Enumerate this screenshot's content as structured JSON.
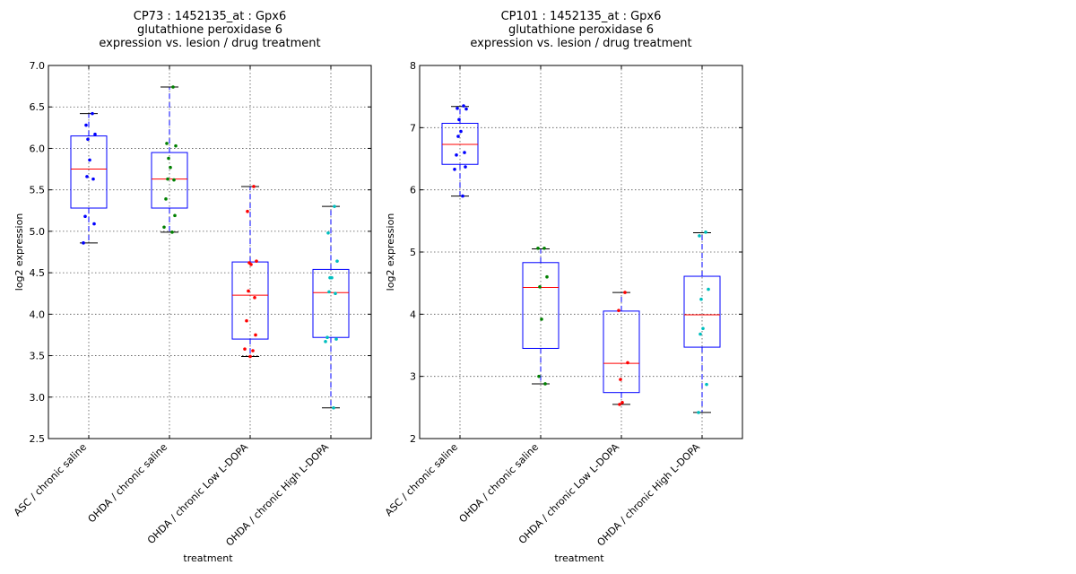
{
  "chart_data": [
    {
      "type": "box",
      "title": [
        "CP73 : 1452135_at : Gpx6",
        "glutathione peroxidase 6",
        "expression vs. lesion / drug treatment"
      ],
      "xlabel": "treatment",
      "ylabel": "log2 expression",
      "ylim": [
        2.5,
        7.0
      ],
      "yticks": [
        2.5,
        3.0,
        3.5,
        4.0,
        4.5,
        5.0,
        5.5,
        6.0,
        6.5,
        7.0
      ],
      "ytick_labels": [
        "2.5",
        "3.0",
        "3.5",
        "4.0",
        "4.5",
        "5.0",
        "5.5",
        "6.0",
        "6.5",
        "7.0"
      ],
      "grid": true,
      "categories": [
        "ASC / chronic saline",
        "OHDA / chronic saline",
        "OHDA / chronic Low L-DOPA",
        "OHDA / chronic High L-DOPA"
      ],
      "series": [
        {
          "color": "#0000ff",
          "q1": 5.28,
          "median": 5.75,
          "q3": 6.15,
          "whisker_low": 4.86,
          "whisker_high": 6.42,
          "points": [
            6.42,
            6.28,
            6.17,
            6.11,
            5.86,
            5.66,
            5.63,
            5.18,
            5.09,
            4.86
          ]
        },
        {
          "color": "#008000",
          "q1": 5.28,
          "median": 5.63,
          "q3": 5.95,
          "whisker_low": 4.99,
          "whisker_high": 6.74,
          "points": [
            6.74,
            6.06,
            6.03,
            5.88,
            5.77,
            5.63,
            5.62,
            5.39,
            5.19,
            5.05,
            4.99
          ]
        },
        {
          "color": "#ff0000",
          "q1": 3.7,
          "median": 4.23,
          "q3": 4.63,
          "whisker_low": 3.49,
          "whisker_high": 5.54,
          "points": [
            5.54,
            5.24,
            4.64,
            4.62,
            4.6,
            4.28,
            4.2,
            3.92,
            3.75,
            3.58,
            3.56,
            3.49
          ]
        },
        {
          "color": "#00bfbf",
          "q1": 3.72,
          "median": 4.26,
          "q3": 4.54,
          "whisker_low": 2.87,
          "whisker_high": 5.3,
          "points": [
            5.3,
            4.98,
            4.64,
            4.44,
            4.44,
            4.27,
            4.25,
            3.72,
            3.7,
            3.67,
            2.87
          ]
        }
      ]
    },
    {
      "type": "box",
      "title": [
        "CP101 : 1452135_at : Gpx6",
        "glutathione peroxidase 6",
        "expression vs. lesion / drug treatment"
      ],
      "xlabel": "treatment",
      "ylabel": "log2 expression",
      "ylim": [
        2,
        8
      ],
      "yticks": [
        2,
        3,
        4,
        5,
        6,
        7,
        8
      ],
      "ytick_labels": [
        "2",
        "3",
        "4",
        "5",
        "6",
        "7",
        "8"
      ],
      "grid": true,
      "categories": [
        "ASC / chronic saline",
        "OHDA / chronic saline",
        "OHDA / chronic Low L-DOPA",
        "OHDA / chronic High L-DOPA"
      ],
      "series": [
        {
          "color": "#0000ff",
          "q1": 6.41,
          "median": 6.73,
          "q3": 7.07,
          "whisker_low": 5.9,
          "whisker_high": 7.34,
          "points": [
            7.35,
            7.31,
            7.3,
            7.13,
            6.94,
            6.86,
            6.6,
            6.56,
            6.37,
            6.33,
            5.9
          ]
        },
        {
          "color": "#008000",
          "q1": 3.45,
          "median": 4.43,
          "q3": 4.83,
          "whisker_low": 2.88,
          "whisker_high": 5.05,
          "points": [
            5.06,
            5.06,
            4.6,
            4.44,
            3.92,
            3.0,
            2.88
          ]
        },
        {
          "color": "#ff0000",
          "q1": 2.74,
          "median": 3.21,
          "q3": 4.05,
          "whisker_low": 2.55,
          "whisker_high": 4.35,
          "points": [
            4.35,
            4.06,
            3.22,
            2.95,
            2.58,
            2.55
          ]
        },
        {
          "color": "#00bfbf",
          "q1": 3.47,
          "median": 3.99,
          "q3": 4.61,
          "whisker_low": 2.42,
          "whisker_high": 5.31,
          "points": [
            5.32,
            5.26,
            4.4,
            4.24,
            3.77,
            3.68,
            2.87,
            2.42
          ]
        }
      ]
    }
  ]
}
